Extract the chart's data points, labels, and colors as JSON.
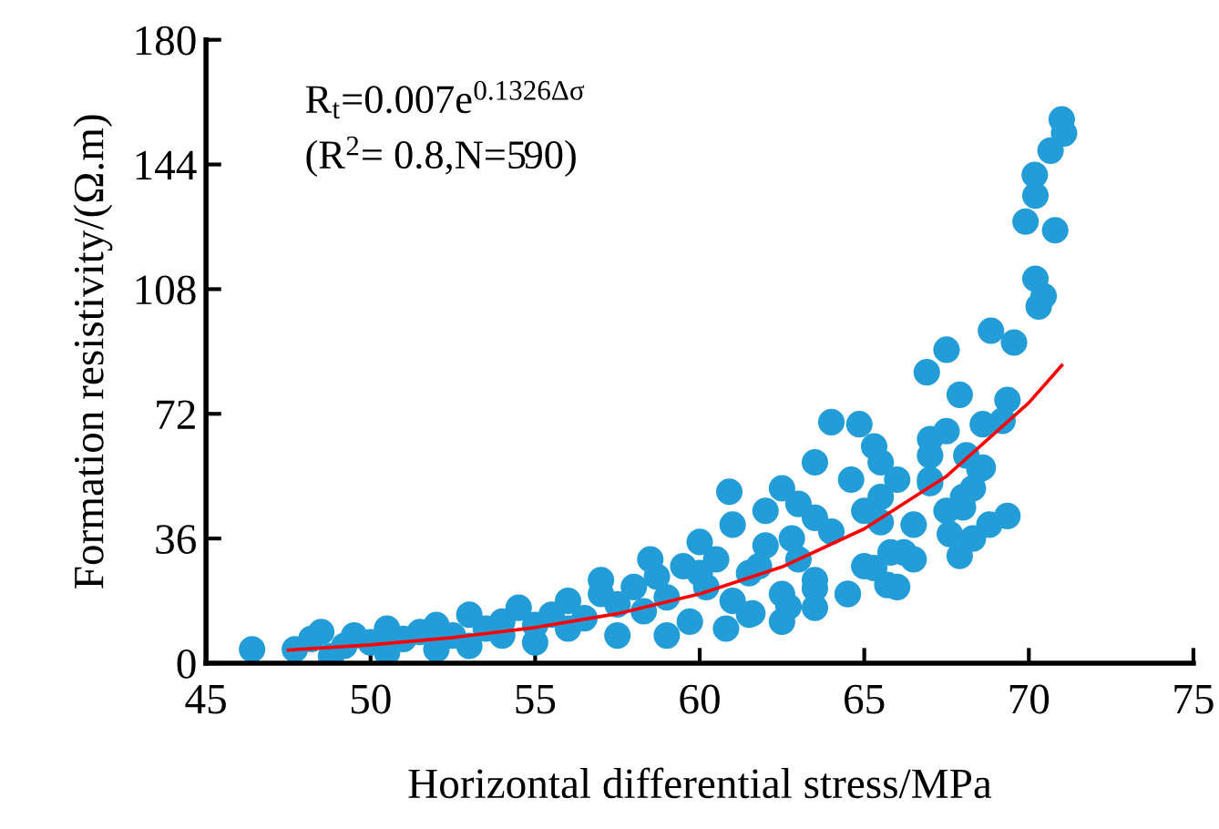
{
  "chart_data": {
    "type": "scatter",
    "xlabel": "Horizontal differential stress/MPa",
    "ylabel": "Formation resistivity/(Ω.m)",
    "annotations": [
      "R$_{t}$=0.007e$^{0.1326Δσ}$",
      "(R$^{2}$= 0.8,N=590)"
    ],
    "xlim": [
      45,
      75
    ],
    "xticks": [
      45,
      50,
      55,
      60,
      65,
      70,
      75
    ],
    "ylim": [
      0,
      180
    ],
    "yticks": [
      0,
      36,
      72,
      108,
      144,
      180
    ],
    "grid": false,
    "legend": false,
    "marker": "circle",
    "series": [
      {
        "color": "#229dd8",
        "x": [
          46.4,
          47.7,
          48.2,
          48.5,
          48.8,
          49.2,
          49.5,
          50,
          50.5,
          51,
          51.5,
          52,
          52.5,
          53,
          53.5,
          54,
          54.5,
          55,
          55.5,
          56,
          56.5,
          57,
          57.5,
          58,
          58.3,
          58.7,
          59,
          59.5,
          59.7,
          60,
          60.2,
          60.5,
          61,
          61,
          61.5,
          62,
          62,
          62.5,
          63,
          63,
          63.5,
          64,
          64.5,
          65,
          65,
          65.5,
          65.8,
          66,
          66.5,
          67,
          67.5,
          68,
          68.3,
          68.5,
          69.2,
          60.8,
          57.5,
          55,
          53,
          52,
          50.5,
          59,
          61.5,
          62.5,
          63.5,
          64.5,
          66.5,
          67,
          62.8,
          60,
          58.5,
          57,
          56,
          54,
          65.5,
          63.5,
          61.8,
          71.0,
          71.07,
          70.66,
          70.18,
          70.2,
          69.9,
          70.8,
          70.2,
          70.45,
          70.3,
          68.85,
          67.5,
          66.9,
          69.55,
          64.0,
          64.85,
          65.3,
          69.35,
          67.9,
          68.6,
          68.1,
          67.5,
          67,
          68.6,
          68.3,
          68.0,
          69.35,
          68.8,
          67.6,
          67.9,
          66.2,
          65.7,
          65.3,
          63.5,
          65.5,
          66,
          67,
          64.6,
          60.9,
          62.5,
          63.5,
          62.7,
          61.6
        ],
        "values": [
          4,
          4,
          7,
          9,
          2,
          5,
          8,
          6,
          10,
          7,
          9,
          11,
          8,
          14,
          10,
          12,
          16,
          11,
          14,
          18,
          13,
          20,
          17,
          22,
          15,
          25,
          19,
          28,
          12,
          35,
          22,
          30,
          18,
          40,
          26,
          34,
          44,
          20,
          30,
          46,
          24,
          38,
          20,
          28,
          44,
          48,
          32,
          22,
          40,
          60,
          44,
          48,
          36,
          56,
          70,
          10,
          8,
          6,
          5,
          4,
          3,
          8,
          14,
          12,
          16,
          20,
          30,
          52,
          36,
          26,
          30,
          24,
          10,
          8,
          58,
          42,
          28,
          157,
          153,
          148,
          141,
          135,
          127.5,
          125,
          111,
          106,
          103,
          96,
          90.5,
          84,
          92.6,
          69.6,
          69,
          62.6,
          76,
          77.5,
          69,
          60,
          67,
          64.7,
          56.5,
          50.5,
          45,
          42.5,
          40,
          37.3,
          31,
          32,
          22.6,
          27.5,
          58,
          40.7,
          53,
          53,
          53,
          49.5,
          50.5,
          21.6,
          16.3,
          14.4
        ]
      },
      {
        "type": "line",
        "color": "#ff0000",
        "line_style": "solid",
        "marker": "none",
        "x": [
          47.5,
          50,
          52.5,
          55,
          57.5,
          60,
          62.5,
          65,
          67.5,
          70,
          71
        ],
        "values": [
          3.8,
          5.3,
          7.4,
          10.3,
          14.3,
          20,
          27.8,
          38.8,
          54,
          75.2,
          86
        ]
      }
    ]
  }
}
